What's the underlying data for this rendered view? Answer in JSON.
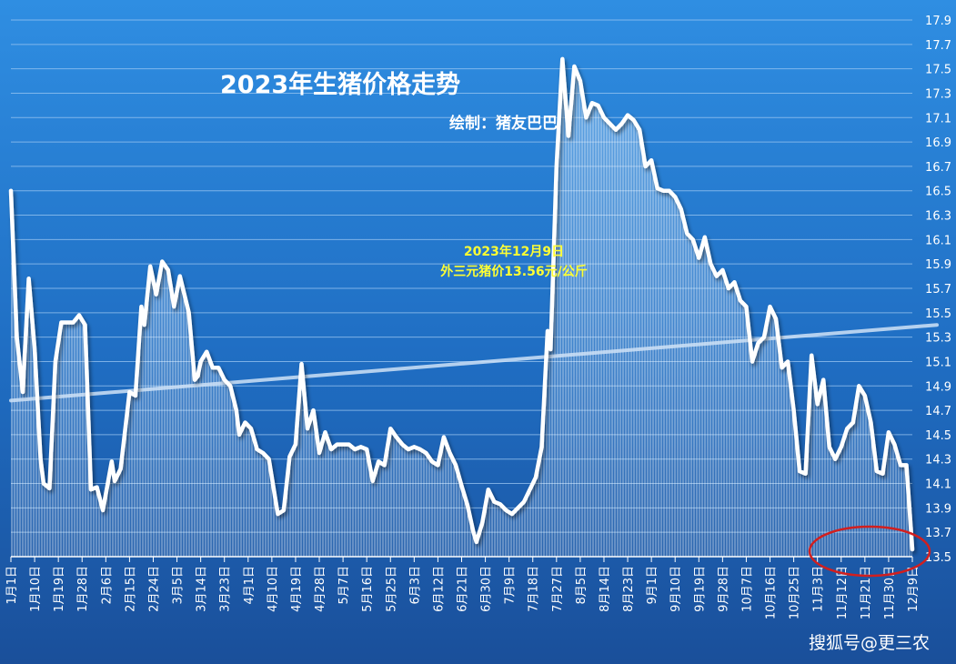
{
  "chart_data": {
    "type": "area",
    "title": "2023年生猪价格走势",
    "subtitle": "绘制：猪友巴巴",
    "annotation": {
      "line1": "2023年12月9日",
      "line2": "外三元猪价13.56元/公斤"
    },
    "watermark": "搜狐号@更三农",
    "xlabel": "",
    "ylabel": "",
    "ylim": [
      13.5,
      17.9
    ],
    "yticks": [
      "13.5",
      "13.7",
      "13.9",
      "14.1",
      "14.3",
      "14.5",
      "14.7",
      "14.9",
      "15.1",
      "15.3",
      "15.5",
      "15.7",
      "15.9",
      "16.1",
      "16.3",
      "16.5",
      "16.7",
      "16.9",
      "17.1",
      "17.3",
      "17.5",
      "17.7",
      "17.9"
    ],
    "grid": true,
    "legend": "none",
    "x_tick_labels": [
      "1月1日",
      "1月10日",
      "1月19日",
      "1月28日",
      "2月6日",
      "2月15日",
      "2月24日",
      "3月5日",
      "3月14日",
      "3月23日",
      "4月1日",
      "4月10日",
      "4月19日",
      "4月28日",
      "5月7日",
      "5月16日",
      "5月25日",
      "6月3日",
      "6月12日",
      "6月21日",
      "6月30日",
      "7月9日",
      "7月18日",
      "7月27日",
      "8月5日",
      "8月14日",
      "8月23日",
      "9月1日",
      "9月10日",
      "9月19日",
      "9月28日",
      "10月7日",
      "10月16日",
      "10月25日",
      "11月3日",
      "11月12日",
      "11月21日",
      "11月30日",
      "12月9日"
    ],
    "series": [
      {
        "values": [
          [
            1,
            16.5
          ],
          [
            3,
            15.3
          ],
          [
            5,
            14.85
          ],
          [
            7,
            15.78
          ],
          [
            9,
            15.2
          ],
          [
            11,
            14.3
          ],
          [
            12,
            14.1
          ],
          [
            14,
            14.06
          ],
          [
            16,
            15.1
          ],
          [
            18,
            15.42
          ],
          [
            20,
            15.42
          ],
          [
            22,
            15.42
          ],
          [
            24,
            15.48
          ],
          [
            26,
            15.4
          ],
          [
            28,
            14.05
          ],
          [
            30,
            14.07
          ],
          [
            32,
            13.88
          ],
          [
            35,
            14.28
          ],
          [
            36,
            14.12
          ],
          [
            38,
            14.22
          ],
          [
            41,
            14.85
          ],
          [
            43,
            14.82
          ],
          [
            45,
            15.55
          ],
          [
            46,
            15.4
          ],
          [
            48,
            15.88
          ],
          [
            50,
            15.65
          ],
          [
            52,
            15.92
          ],
          [
            54,
            15.85
          ],
          [
            56,
            15.55
          ],
          [
            58,
            15.8
          ],
          [
            61,
            15.5
          ],
          [
            63,
            14.95
          ],
          [
            64,
            14.98
          ],
          [
            65,
            15.1
          ],
          [
            67,
            15.18
          ],
          [
            69,
            15.05
          ],
          [
            71,
            15.05
          ],
          [
            73,
            14.95
          ],
          [
            75,
            14.9
          ],
          [
            77,
            14.7
          ],
          [
            78,
            14.5
          ],
          [
            80,
            14.6
          ],
          [
            82,
            14.55
          ],
          [
            84,
            14.38
          ],
          [
            86,
            14.35
          ],
          [
            88,
            14.3
          ],
          [
            91,
            13.85
          ],
          [
            93,
            13.88
          ],
          [
            95,
            14.32
          ],
          [
            97,
            14.42
          ],
          [
            99,
            15.08
          ],
          [
            101,
            14.55
          ],
          [
            103,
            14.7
          ],
          [
            105,
            14.35
          ],
          [
            107,
            14.52
          ],
          [
            109,
            14.38
          ],
          [
            111,
            14.42
          ],
          [
            113,
            14.42
          ],
          [
            115,
            14.42
          ],
          [
            117,
            14.38
          ],
          [
            119,
            14.4
          ],
          [
            121,
            14.38
          ],
          [
            123,
            14.12
          ],
          [
            125,
            14.28
          ],
          [
            127,
            14.25
          ],
          [
            129,
            14.55
          ],
          [
            131,
            14.48
          ],
          [
            133,
            14.42
          ],
          [
            135,
            14.38
          ],
          [
            137,
            14.4
          ],
          [
            139,
            14.38
          ],
          [
            141,
            14.35
          ],
          [
            143,
            14.28
          ],
          [
            145,
            14.25
          ],
          [
            147,
            14.48
          ],
          [
            149,
            14.35
          ],
          [
            151,
            14.25
          ],
          [
            153,
            14.08
          ],
          [
            155,
            13.92
          ],
          [
            157,
            13.7
          ],
          [
            158,
            13.62
          ],
          [
            160,
            13.78
          ],
          [
            162,
            14.05
          ],
          [
            164,
            13.95
          ],
          [
            166,
            13.93
          ],
          [
            168,
            13.88
          ],
          [
            170,
            13.85
          ],
          [
            172,
            13.9
          ],
          [
            174,
            13.95
          ],
          [
            176,
            14.05
          ],
          [
            178,
            14.15
          ],
          [
            180,
            14.4
          ],
          [
            182,
            15.35
          ],
          [
            183,
            15.2
          ],
          [
            185,
            16.7
          ],
          [
            187,
            17.58
          ],
          [
            189,
            16.95
          ],
          [
            191,
            17.52
          ],
          [
            193,
            17.4
          ],
          [
            195,
            17.1
          ],
          [
            197,
            17.22
          ],
          [
            199,
            17.2
          ],
          [
            201,
            17.1
          ],
          [
            203,
            17.05
          ],
          [
            205,
            17.0
          ],
          [
            207,
            17.05
          ],
          [
            209,
            17.12
          ],
          [
            211,
            17.08
          ],
          [
            213,
            17.0
          ],
          [
            215,
            16.7
          ],
          [
            217,
            16.75
          ],
          [
            219,
            16.52
          ],
          [
            221,
            16.5
          ],
          [
            223,
            16.5
          ],
          [
            225,
            16.45
          ],
          [
            227,
            16.35
          ],
          [
            229,
            16.15
          ],
          [
            231,
            16.1
          ],
          [
            233,
            15.95
          ],
          [
            235,
            16.12
          ],
          [
            237,
            15.9
          ],
          [
            239,
            15.8
          ],
          [
            241,
            15.85
          ],
          [
            243,
            15.7
          ],
          [
            245,
            15.75
          ],
          [
            247,
            15.6
          ],
          [
            249,
            15.55
          ],
          [
            251,
            15.1
          ],
          [
            253,
            15.25
          ],
          [
            255,
            15.3
          ],
          [
            257,
            15.55
          ],
          [
            259,
            15.45
          ],
          [
            261,
            15.05
          ],
          [
            263,
            15.1
          ],
          [
            265,
            14.7
          ],
          [
            267,
            14.2
          ],
          [
            269,
            14.18
          ],
          [
            271,
            15.15
          ],
          [
            273,
            14.75
          ],
          [
            275,
            14.95
          ],
          [
            277,
            14.4
          ],
          [
            279,
            14.3
          ],
          [
            281,
            14.4
          ],
          [
            283,
            14.55
          ],
          [
            285,
            14.6
          ],
          [
            287,
            14.9
          ],
          [
            289,
            14.82
          ],
          [
            291,
            14.6
          ],
          [
            293,
            14.2
          ],
          [
            295,
            14.18
          ],
          [
            297,
            14.52
          ],
          [
            299,
            14.42
          ],
          [
            301,
            14.25
          ],
          [
            303,
            14.25
          ],
          [
            305,
            13.56
          ]
        ]
      }
    ],
    "trendline": {
      "start": 14.78,
      "end": 15.38
    }
  }
}
